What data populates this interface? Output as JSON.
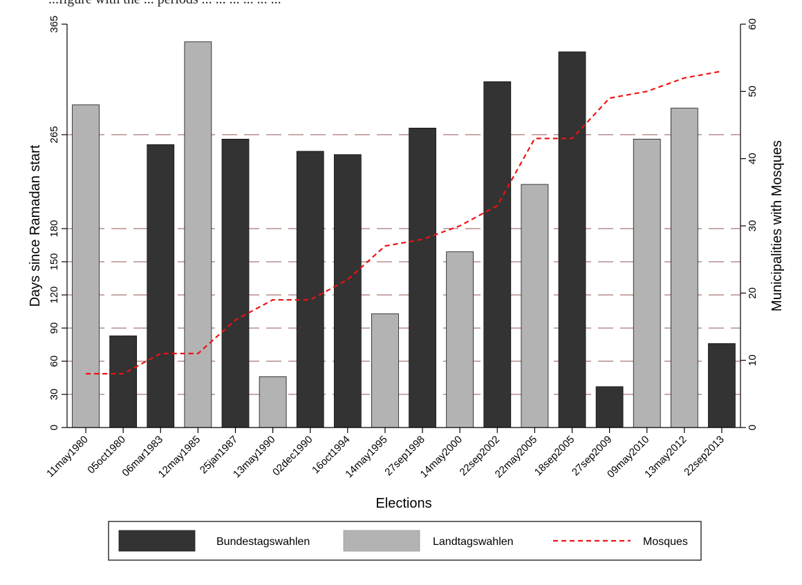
{
  "page": {
    "caption_fragment": "...figure with the ... periods ... ... ... ... ... ..."
  },
  "chart_data": {
    "type": "bar",
    "title": "",
    "xlabel": "Elections",
    "ylabel": "Days since Ramadan start",
    "y2label": "Municipalities with Mosques",
    "categories": [
      "11may1980",
      "05oct1980",
      "06mar1983",
      "12may1985",
      "25jan1987",
      "13may1990",
      "02dec1990",
      "16oct1994",
      "14may1995",
      "27sep1998",
      "14may2000",
      "22sep2002",
      "22may2005",
      "18sep2005",
      "27sep2009",
      "09may2010",
      "13may2012",
      "22sep2013"
    ],
    "election_type": [
      "Landtagswahlen",
      "Bundestagswahlen",
      "Bundestagswahlen",
      "Landtagswahlen",
      "Bundestagswahlen",
      "Landtagswahlen",
      "Bundestagswahlen",
      "Bundestagswahlen",
      "Landtagswahlen",
      "Bundestagswahlen",
      "Landtagswahlen",
      "Bundestagswahlen",
      "Landtagswahlen",
      "Bundestagswahlen",
      "Bundestagswahlen",
      "Landtagswahlen",
      "Landtagswahlen",
      "Bundestagswahlen"
    ],
    "series": [
      {
        "name": "Days since Ramadan start",
        "axis": "left",
        "values": [
          292,
          83,
          256,
          349,
          261,
          46,
          250,
          247,
          103,
          271,
          159,
          313,
          220,
          340,
          37,
          261,
          289,
          76
        ]
      },
      {
        "name": "Mosques",
        "axis": "right",
        "style": "dashed-line",
        "color": "#ee1111",
        "values": [
          8,
          8,
          11,
          11,
          16,
          19,
          19,
          22,
          27,
          28,
          30,
          33,
          43,
          43,
          49,
          50,
          52,
          53
        ]
      }
    ],
    "y_ticks": [
      0,
      30,
      60,
      90,
      120,
      150,
      180,
      265,
      365
    ],
    "y_ticks_labels": [
      "0",
      "30",
      "60",
      "90",
      "120",
      "150",
      "180",
      "265",
      "365"
    ],
    "ylim": [
      0,
      365
    ],
    "y2_ticks": [
      0,
      10,
      20,
      30,
      40,
      50,
      60
    ],
    "y2_ticks_labels": [
      "0",
      "10",
      "20",
      "30",
      "40",
      "50",
      "60"
    ],
    "y2lim": [
      0,
      60
    ],
    "reference_lines": [
      30,
      60,
      90,
      120,
      150,
      180,
      265
    ],
    "reference_line_color": "#c8a8a8",
    "legend": {
      "position": "bottom",
      "entries": [
        {
          "label": "Bundestagswahlen",
          "kind": "bar",
          "color": "#333333"
        },
        {
          "label": "Landtagswahlen",
          "kind": "bar",
          "color": "#b3b3b3"
        },
        {
          "label": "Mosques",
          "kind": "line",
          "color": "#ee1111"
        }
      ]
    },
    "colors": {
      "Bundestagswahlen": "#333333",
      "Landtagswahlen": "#b3b3b3",
      "Mosques": "#ee1111"
    },
    "grid": false
  }
}
